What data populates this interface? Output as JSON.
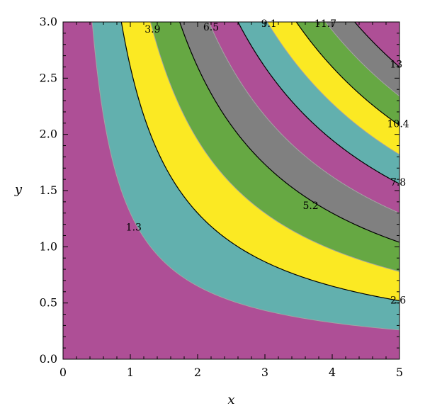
{
  "chart_data": {
    "type": "contour",
    "function": "x*y",
    "xlabel": "x",
    "ylabel": "y",
    "xlim": [
      0,
      5
    ],
    "ylim": [
      0,
      3
    ],
    "x_ticks": [
      "0",
      "1",
      "2",
      "3",
      "4",
      "5"
    ],
    "y_ticks": [
      "0.0",
      "0.5",
      "1.0",
      "1.5",
      "2.0",
      "2.5",
      "3.0"
    ],
    "contour_levels": [
      1.3,
      2.6,
      3.9,
      5.2,
      6.5,
      7.8,
      9.1,
      10.4,
      11.7,
      13
    ],
    "band_colors": [
      "#ae4f96",
      "#62b0ae",
      "#fbe923",
      "#66a843",
      "#808080"
    ],
    "line_color_major": "#000000",
    "line_color_minor": "#a3a3a3",
    "contour_labels": [
      {
        "text": "1.3",
        "x": 1.05,
        "y": 1.17
      },
      {
        "text": "2.6",
        "x": 4.98,
        "y": 0.52
      },
      {
        "text": "3.9",
        "x": 1.33,
        "y": 2.93
      },
      {
        "text": "5.2",
        "x": 3.68,
        "y": 1.36
      },
      {
        "text": "6.5",
        "x": 2.2,
        "y": 2.95
      },
      {
        "text": "7.8",
        "x": 4.98,
        "y": 1.57
      },
      {
        "text": "9.1",
        "x": 3.06,
        "y": 2.98
      },
      {
        "text": "10.4",
        "x": 4.98,
        "y": 2.09
      },
      {
        "text": "11.7",
        "x": 3.9,
        "y": 2.98
      },
      {
        "text": "13",
        "x": 4.95,
        "y": 2.62
      }
    ]
  }
}
